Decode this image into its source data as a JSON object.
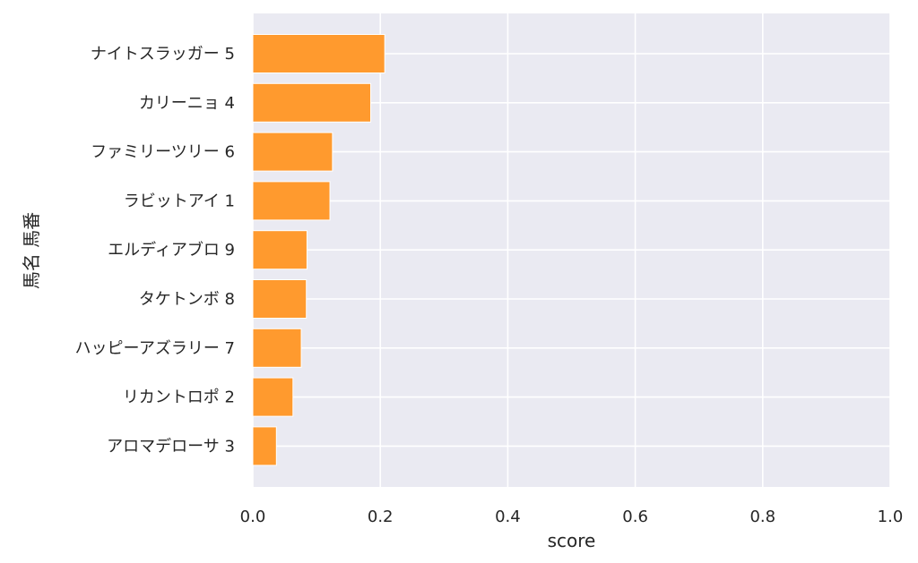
{
  "chart_data": {
    "type": "bar",
    "orientation": "horizontal",
    "categories": [
      "ナイトスラッガー 5",
      "カリーニョ 4",
      "ファミリーツリー 6",
      "ラビットアイ 1",
      "エルディアブロ 9",
      "タケトンボ 8",
      "ハッピーアズラリー 7",
      "リカントロポ 2",
      "アロマデローサ 3"
    ],
    "values": [
      0.207,
      0.185,
      0.125,
      0.121,
      0.085,
      0.084,
      0.076,
      0.063,
      0.037
    ],
    "xlabel": "score",
    "ylabel": "馬名 馬番",
    "xlim": [
      0,
      1.0
    ],
    "xticks": [
      "0.0",
      "0.2",
      "0.4",
      "0.6",
      "0.8",
      "1.0"
    ],
    "grid": true,
    "bar_color": "#ff9a2e",
    "background_color": "#eaeaf2"
  }
}
